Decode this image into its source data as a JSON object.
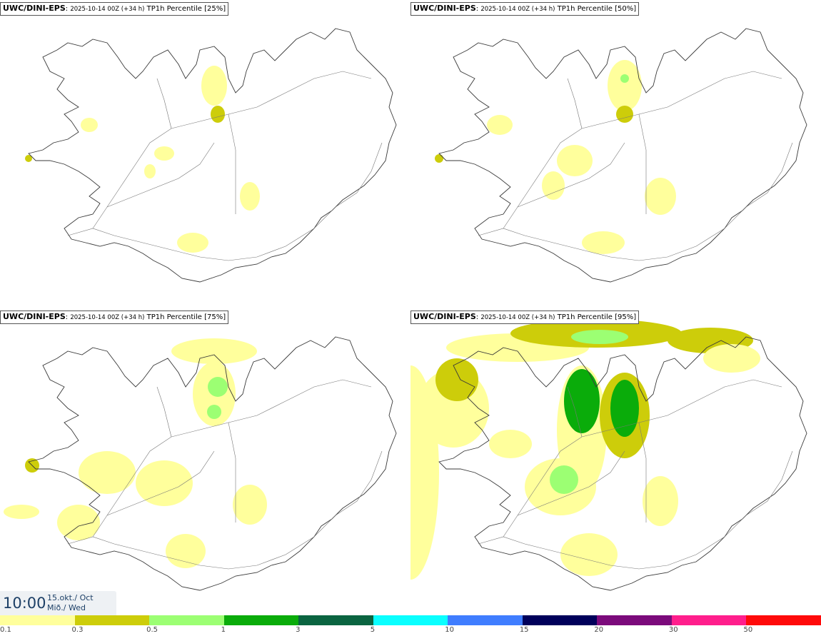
{
  "panels": [
    {
      "model": "UWC/DINI-EPS",
      "run": "2025-10-14 00Z (+34 h)",
      "label": "TP1h Percentile [25%]"
    },
    {
      "model": "UWC/DINI-EPS",
      "run": "2025-10-14 00Z (+34 h)",
      "label": "TP1h Percentile [50%]"
    },
    {
      "model": "UWC/DINI-EPS",
      "run": "2025-10-14 00Z (+34 h)",
      "label": "TP1h Percentile [75%]"
    },
    {
      "model": "UWC/DINI-EPS",
      "run": "2025-10-14 00Z (+34 h)",
      "label": "TP1h Percentile [95%]"
    }
  ],
  "valid_time": {
    "time": "10:00",
    "date_line1": "15.okt./ Oct",
    "date_line2": "Mið./ Wed"
  },
  "legend": {
    "colors": [
      "#ffff9c",
      "#cdcd0a",
      "#9cff73",
      "#0aac0a",
      "#0a6440",
      "#0affff",
      "#3f7dff",
      "#00005a",
      "#7b0a7b",
      "#ff1e8c",
      "#ff0a0a"
    ],
    "ticks": [
      "0.1",
      "0.3",
      "0.5",
      "1",
      "3",
      "5",
      "10",
      "15",
      "20",
      "30",
      "50"
    ]
  },
  "colors": {
    "coast": "#3a3a3a",
    "background": "#ffffff"
  }
}
